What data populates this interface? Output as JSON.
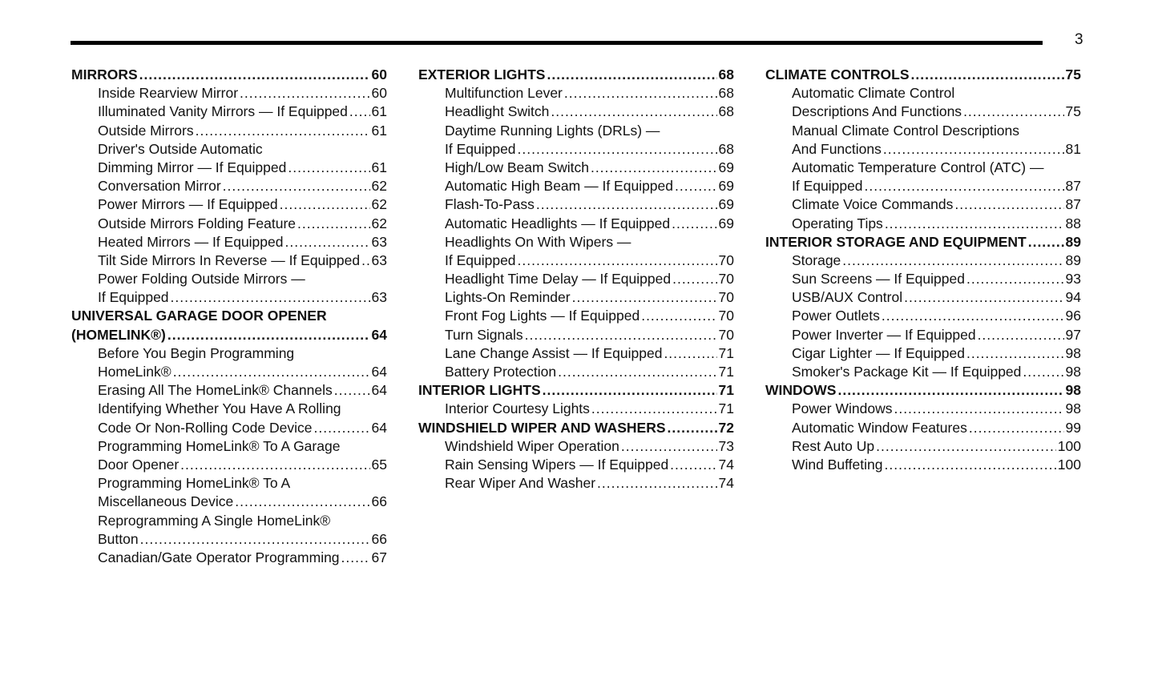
{
  "page_number": "3",
  "columns": [
    {
      "entries": [
        {
          "level": "head",
          "lines": [
            "MIRRORS"
          ],
          "page": "60"
        },
        {
          "level": "sub",
          "lines": [
            "Inside Rearview Mirror"
          ],
          "page": "60"
        },
        {
          "level": "sub",
          "lines": [
            "Illuminated Vanity Mirrors — If Equipped"
          ],
          "page": "61"
        },
        {
          "level": "sub",
          "lines": [
            "Outside Mirrors"
          ],
          "page": "61"
        },
        {
          "level": "sub",
          "lines": [
            "Driver's Outside Automatic",
            "Dimming Mirror — If Equipped"
          ],
          "page": "61"
        },
        {
          "level": "sub",
          "lines": [
            "Conversation Mirror"
          ],
          "page": "62"
        },
        {
          "level": "sub",
          "lines": [
            "Power Mirrors — If Equipped"
          ],
          "page": "62"
        },
        {
          "level": "sub",
          "lines": [
            "Outside Mirrors Folding Feature"
          ],
          "page": "62"
        },
        {
          "level": "sub",
          "lines": [
            "Heated Mirrors — If Equipped"
          ],
          "page": "63"
        },
        {
          "level": "sub",
          "lines": [
            "Tilt Side Mirrors In Reverse — If Equipped"
          ],
          "page": "63"
        },
        {
          "level": "sub",
          "lines": [
            "Power Folding Outside Mirrors —",
            "If Equipped"
          ],
          "page": "63"
        },
        {
          "level": "head",
          "lines": [
            "UNIVERSAL GARAGE DOOR OPENER",
            "(HOMELINK®)"
          ],
          "page": "64"
        },
        {
          "level": "sub",
          "lines": [
            "Before You Begin Programming",
            "HomeLink®"
          ],
          "page": "64"
        },
        {
          "level": "sub",
          "lines": [
            "Erasing All The HomeLink® Channels"
          ],
          "page": "64"
        },
        {
          "level": "sub",
          "lines": [
            "Identifying Whether You Have A Rolling",
            "Code Or Non-Rolling Code Device"
          ],
          "page": "64"
        },
        {
          "level": "sub",
          "lines": [
            "Programming HomeLink® To A Garage",
            "Door Opener"
          ],
          "page": "65"
        },
        {
          "level": "sub",
          "lines": [
            "Programming HomeLink® To A",
            "Miscellaneous Device"
          ],
          "page": "66"
        },
        {
          "level": "sub",
          "lines": [
            "Reprogramming A Single HomeLink®",
            "Button"
          ],
          "page": "66"
        },
        {
          "level": "sub",
          "lines": [
            "Canadian/Gate Operator Programming"
          ],
          "page": "67"
        }
      ]
    },
    {
      "entries": [
        {
          "level": "head",
          "lines": [
            "EXTERIOR LIGHTS"
          ],
          "page": "68"
        },
        {
          "level": "sub",
          "lines": [
            "Multifunction Lever"
          ],
          "page": "68"
        },
        {
          "level": "sub",
          "lines": [
            "Headlight Switch"
          ],
          "page": "68"
        },
        {
          "level": "sub",
          "lines": [
            "Daytime Running Lights (DRLs) —",
            "If Equipped"
          ],
          "page": "68"
        },
        {
          "level": "sub",
          "lines": [
            "High/Low Beam Switch"
          ],
          "page": "69"
        },
        {
          "level": "sub",
          "lines": [
            "Automatic High Beam — If Equipped"
          ],
          "page": "69"
        },
        {
          "level": "sub",
          "lines": [
            "Flash-To-Pass"
          ],
          "page": "69"
        },
        {
          "level": "sub",
          "lines": [
            "Automatic Headlights — If Equipped"
          ],
          "page": "69"
        },
        {
          "level": "sub",
          "lines": [
            "Headlights On With Wipers —",
            "If Equipped"
          ],
          "page": "70"
        },
        {
          "level": "sub",
          "lines": [
            "Headlight Time Delay — If Equipped"
          ],
          "page": "70"
        },
        {
          "level": "sub",
          "lines": [
            "Lights-On Reminder"
          ],
          "page": "70"
        },
        {
          "level": "sub",
          "lines": [
            "Front Fog Lights — If Equipped"
          ],
          "page": "70"
        },
        {
          "level": "sub",
          "lines": [
            "Turn Signals"
          ],
          "page": "70"
        },
        {
          "level": "sub",
          "lines": [
            "Lane Change Assist — If Equipped"
          ],
          "page": "71"
        },
        {
          "level": "sub",
          "lines": [
            "Battery Protection"
          ],
          "page": "71"
        },
        {
          "level": "head",
          "lines": [
            "INTERIOR LIGHTS"
          ],
          "page": "71"
        },
        {
          "level": "sub",
          "lines": [
            "Interior Courtesy Lights"
          ],
          "page": "71"
        },
        {
          "level": "head",
          "lines": [
            "WINDSHIELD WIPER AND WASHERS"
          ],
          "page": "72"
        },
        {
          "level": "sub",
          "lines": [
            "Windshield Wiper Operation"
          ],
          "page": "73"
        },
        {
          "level": "sub",
          "lines": [
            "Rain Sensing Wipers — If Equipped"
          ],
          "page": "74"
        },
        {
          "level": "sub",
          "lines": [
            "Rear Wiper And Washer"
          ],
          "page": "74"
        }
      ]
    },
    {
      "entries": [
        {
          "level": "head",
          "lines": [
            "CLIMATE CONTROLS"
          ],
          "page": "75"
        },
        {
          "level": "sub",
          "lines": [
            "Automatic Climate Control",
            "Descriptions And Functions"
          ],
          "page": "75"
        },
        {
          "level": "sub",
          "lines": [
            "Manual Climate Control Descriptions",
            "And Functions"
          ],
          "page": "81"
        },
        {
          "level": "sub",
          "lines": [
            "Automatic Temperature Control (ATC) —",
            "If Equipped"
          ],
          "page": "87"
        },
        {
          "level": "sub",
          "lines": [
            "Climate Voice Commands"
          ],
          "page": "87"
        },
        {
          "level": "sub",
          "lines": [
            "Operating Tips"
          ],
          "page": "88"
        },
        {
          "level": "head",
          "lines": [
            "INTERIOR STORAGE AND EQUIPMENT"
          ],
          "page": "89"
        },
        {
          "level": "sub",
          "lines": [
            "Storage"
          ],
          "page": "89"
        },
        {
          "level": "sub",
          "lines": [
            "Sun Screens — If Equipped"
          ],
          "page": "93"
        },
        {
          "level": "sub",
          "lines": [
            "USB/AUX Control"
          ],
          "page": "94"
        },
        {
          "level": "sub",
          "lines": [
            "Power Outlets"
          ],
          "page": "96"
        },
        {
          "level": "sub",
          "lines": [
            "Power Inverter — If Equipped"
          ],
          "page": "97"
        },
        {
          "level": "sub",
          "lines": [
            "Cigar Lighter — If Equipped"
          ],
          "page": "98"
        },
        {
          "level": "sub",
          "lines": [
            "Smoker's Package Kit — If Equipped"
          ],
          "page": "98"
        },
        {
          "level": "head",
          "lines": [
            "WINDOWS"
          ],
          "page": "98"
        },
        {
          "level": "sub",
          "lines": [
            "Power Windows"
          ],
          "page": "98"
        },
        {
          "level": "sub",
          "lines": [
            "Automatic Window Features"
          ],
          "page": "99"
        },
        {
          "level": "sub",
          "lines": [
            "Rest Auto Up"
          ],
          "page": "100"
        },
        {
          "level": "sub",
          "lines": [
            "Wind Buffeting"
          ],
          "page": "100"
        }
      ]
    }
  ]
}
